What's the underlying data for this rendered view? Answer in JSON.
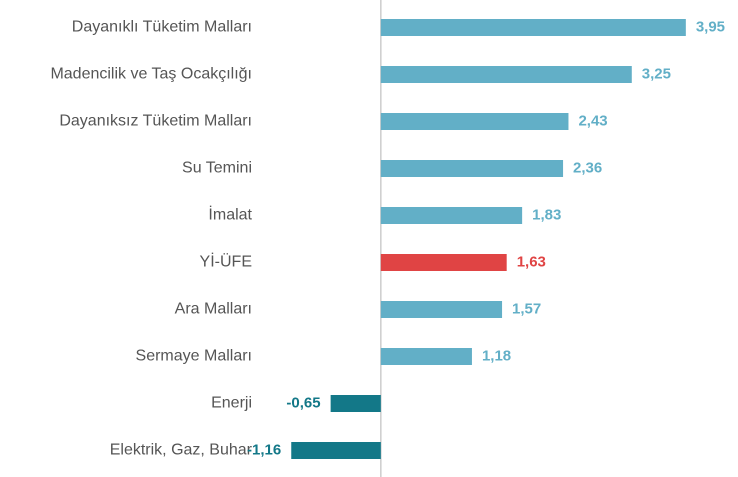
{
  "chart_data": {
    "type": "bar",
    "orientation": "horizontal",
    "categories": [
      "Dayanıklı Tüketim Malları",
      "Madencilik ve Taş Ocakçılığı",
      "Dayanıksız Tüketim Malları",
      "Su Temini",
      "İmalat",
      "Yİ-ÜFE",
      "Ara Malları",
      "Sermaye Malları",
      "Enerji",
      "Elektrik, Gaz, Buhar"
    ],
    "values": [
      3.95,
      3.25,
      2.43,
      2.36,
      1.83,
      1.63,
      1.57,
      1.18,
      -0.65,
      -1.16
    ],
    "value_labels": [
      "3,95",
      "3,25",
      "2,43",
      "2,36",
      "1,83",
      "1,63",
      "1,57",
      "1,18",
      "-0,65",
      "-1,16"
    ],
    "colors": [
      "#62afc7",
      "#62afc7",
      "#62afc7",
      "#62afc7",
      "#62afc7",
      "#e04444",
      "#62afc7",
      "#62afc7",
      "#137888",
      "#137888"
    ],
    "xlim": [
      -1.5,
      4.25
    ]
  }
}
